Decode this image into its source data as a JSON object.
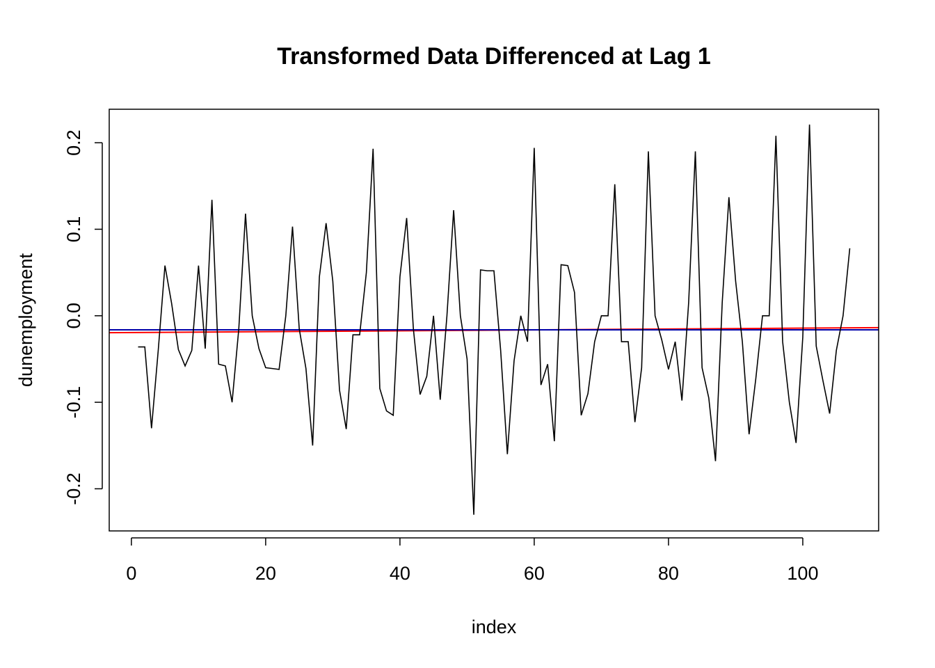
{
  "chart_data": {
    "type": "line",
    "title": "Transformed Data Differenced at Lag 1",
    "xlabel": "index",
    "ylabel": "dunemployment",
    "xlim": [
      -3.3,
      111.3
    ],
    "ylim": [
      -0.2487,
      0.2387
    ],
    "x_ticks": [
      0,
      20,
      40,
      60,
      80,
      100
    ],
    "x_tick_labels": [
      "0",
      "20",
      "40",
      "60",
      "80",
      "100"
    ],
    "y_ticks": [
      -0.2,
      -0.1,
      0.0,
      0.1,
      0.2
    ],
    "y_tick_labels": [
      "-0.2",
      "-0.1",
      "0.0",
      "0.1",
      "0.2"
    ],
    "grid": false,
    "legend": "none",
    "colors": {
      "series": "#000000",
      "red_line": "#ff0000",
      "blue_line": "#0000aa"
    },
    "series": [
      {
        "x": [
          1,
          2,
          3,
          4,
          5,
          6,
          7,
          8,
          9,
          10,
          11,
          12,
          13,
          14,
          15,
          16,
          17,
          18,
          19,
          20,
          21,
          22,
          23,
          24,
          25,
          26,
          27,
          28,
          29,
          30,
          31,
          32,
          33,
          34,
          35,
          36,
          37,
          38,
          39,
          40,
          41,
          42,
          43,
          44,
          45,
          46,
          47,
          48,
          49,
          50,
          51,
          52,
          53,
          54,
          55,
          56,
          57,
          58,
          59,
          60,
          61,
          62,
          63,
          64,
          65,
          66,
          67,
          68,
          69,
          70,
          71,
          72,
          73,
          74,
          75,
          76,
          77,
          78,
          79,
          80,
          81,
          82,
          83,
          84,
          85,
          86,
          87,
          88,
          89,
          90,
          91,
          92,
          93,
          94,
          95,
          96,
          97,
          98,
          99,
          100,
          101,
          102,
          103,
          104,
          105,
          106,
          107
        ],
        "values": [
          -0.036,
          -0.036,
          -0.13,
          -0.04,
          0.058,
          0.014,
          -0.039,
          -0.058,
          -0.04,
          0.058,
          -0.038,
          0.134,
          -0.056,
          -0.058,
          -0.1,
          -0.015,
          0.118,
          0.0,
          -0.038,
          -0.06,
          -0.061,
          -0.062,
          0.0,
          0.103,
          -0.015,
          -0.061,
          -0.15,
          0.045,
          0.107,
          0.04,
          -0.086,
          -0.131,
          -0.022,
          -0.022,
          0.05,
          0.193,
          -0.084,
          -0.11,
          -0.115,
          0.045,
          0.113,
          -0.015,
          -0.091,
          -0.07,
          0.0,
          -0.097,
          0.0,
          0.122,
          0.0,
          -0.05,
          -0.23,
          0.053,
          0.052,
          0.052,
          -0.04,
          -0.16,
          -0.052,
          0.0,
          -0.03,
          0.194,
          -0.08,
          -0.056,
          -0.145,
          0.059,
          0.058,
          0.027,
          -0.115,
          -0.09,
          -0.03,
          0.0,
          0.0,
          0.152,
          -0.03,
          -0.03,
          -0.123,
          -0.06,
          0.19,
          0.0,
          -0.028,
          -0.062,
          -0.03,
          -0.098,
          0.015,
          0.19,
          -0.06,
          -0.095,
          -0.168,
          0.015,
          0.137,
          0.04,
          -0.03,
          -0.137,
          -0.073,
          0.0,
          0.0,
          0.208,
          -0.03,
          -0.1,
          -0.147,
          -0.025,
          0.221,
          -0.035,
          -0.075,
          -0.113,
          -0.04,
          0.0,
          0.078
        ]
      }
    ],
    "reference_lines": [
      {
        "color": "red",
        "y_left": -0.0196,
        "y_right": -0.0137
      },
      {
        "color": "blue",
        "y_left": -0.0163,
        "y_right": -0.0163
      }
    ]
  }
}
